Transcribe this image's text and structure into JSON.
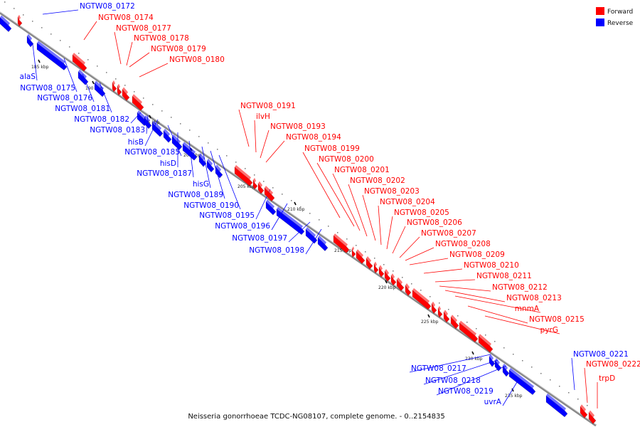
{
  "caption": "Neisseria gonorrhoeae TCDC-NG08107, complete genome. - 0..2154835",
  "legend": [
    {
      "label": "Forward",
      "color": "#ff0000"
    },
    {
      "label": "Reverse",
      "color": "#0000ff"
    }
  ],
  "colors": {
    "forward": "#ff0000",
    "reverse": "#0000ff",
    "backbone": "#888888"
  },
  "ticks": [
    "185 kbp",
    "190 kbp",
    "195 kbp",
    "200 kbp",
    "205 kbp",
    "210 kbp",
    "215 kbp",
    "220 kbp",
    "225 kbp",
    "230 kbp",
    "235 kbp"
  ],
  "genes_forward": [
    "NGTW08_0174",
    "NGTW08_0177",
    "NGTW08_0178",
    "NGTW08_0179",
    "NGTW08_0180",
    "NGTW08_0191",
    "ilvH",
    "NGTW08_0193",
    "NGTW08_0194",
    "NGTW08_0199",
    "NGTW08_0200",
    "NGTW08_0201",
    "NGTW08_0202",
    "NGTW08_0203",
    "NGTW08_0204",
    "NGTW08_0205",
    "NGTW08_0206",
    "NGTW08_0207",
    "NGTW08_0208",
    "NGTW08_0209",
    "NGTW08_0210",
    "NGTW08_0211",
    "NGTW08_0212",
    "NGTW08_0213",
    "mnmA",
    "NGTW08_0215",
    "pyrG",
    "NGTW08_0222",
    "trpD"
  ],
  "genes_reverse": [
    "NGTW08_0172",
    "alaS",
    "NGTW08_0175",
    "NGTW08_0176",
    "NGTW08_0181",
    "NGTW08_0182",
    "NGTW08_0183",
    "hisB",
    "NGTW08_0185",
    "hisD",
    "NGTW08_0187",
    "hisG",
    "NGTW08_0189",
    "NGTW08_0190",
    "NGTW08_0195",
    "NGTW08_0196",
    "NGTW08_0197",
    "NGTW08_0198",
    "NGTW08_0217",
    "NGTW08_0218",
    "NGTW08_0219",
    "uvrA",
    "NGTW08_0221"
  ]
}
